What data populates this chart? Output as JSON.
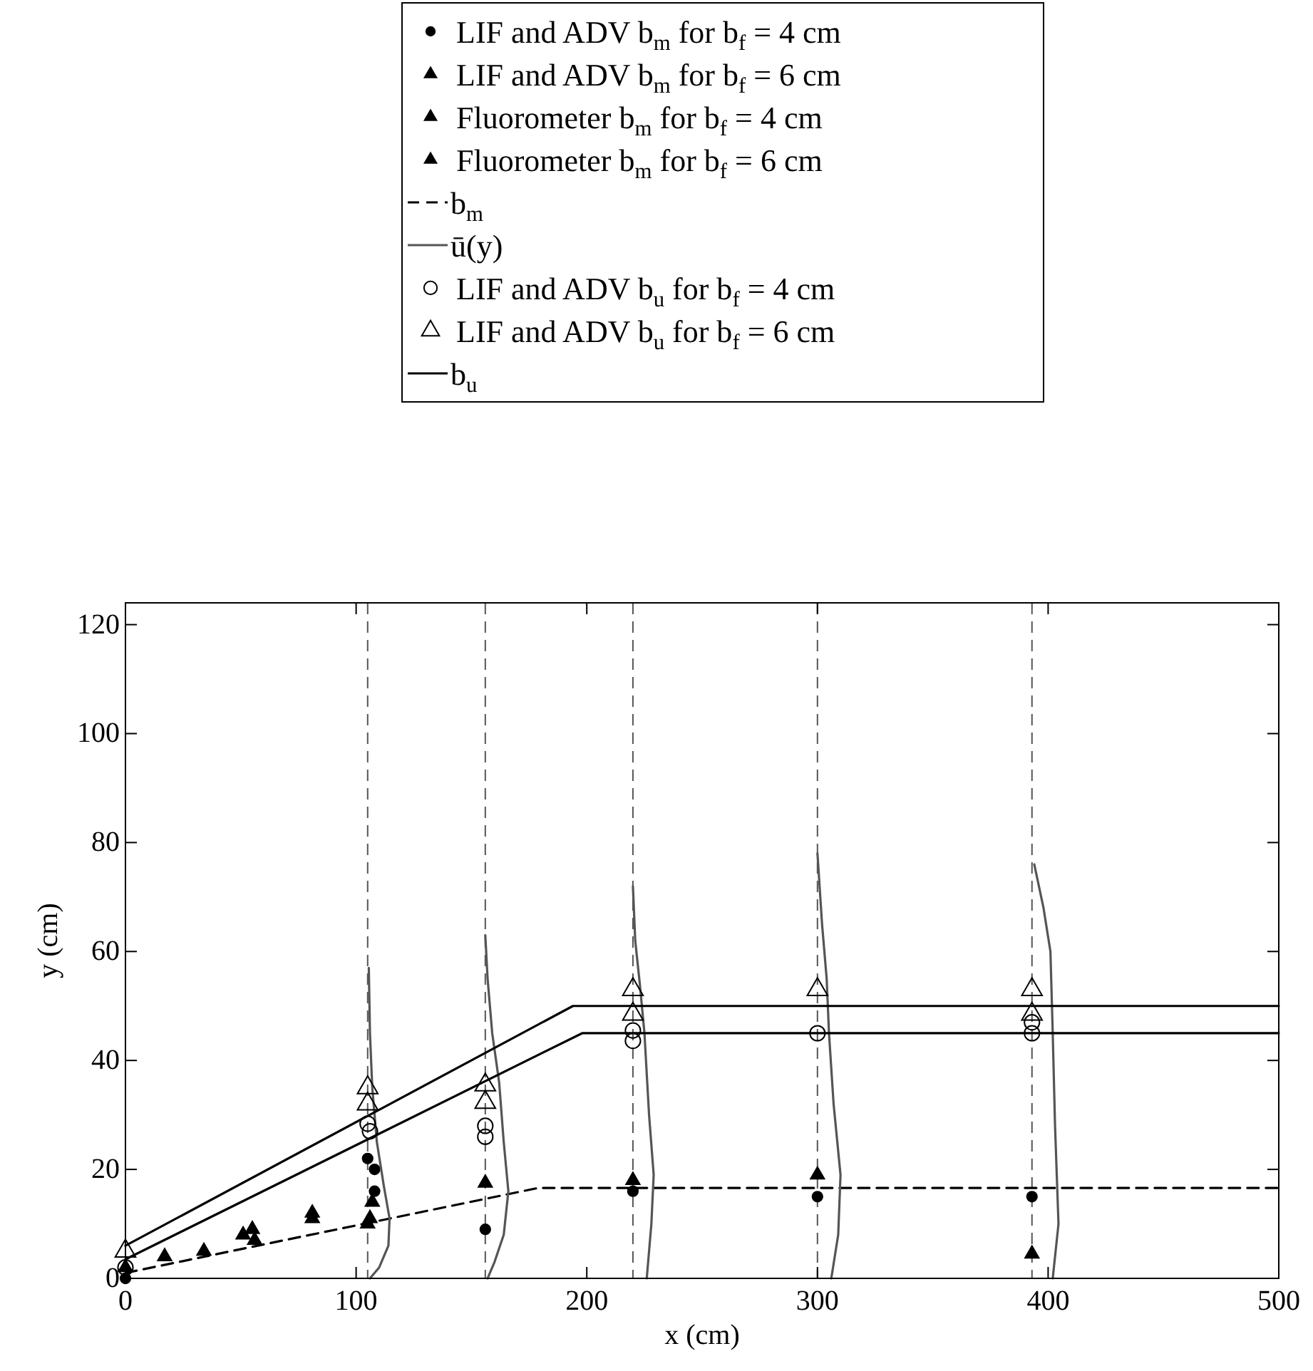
{
  "chart_data": {
    "type": "scatter",
    "xlabel": "x (cm)",
    "ylabel": "y (cm)",
    "xlim": [
      0,
      500
    ],
    "ylim": [
      0,
      124
    ],
    "xticks": [
      0,
      100,
      200,
      300,
      400,
      500
    ],
    "yticks": [
      0,
      20,
      40,
      60,
      80,
      100,
      120
    ],
    "grid": false,
    "legend": "top",
    "series": [
      {
        "name": "LIF and ADV b$_{m}$ for b$_{f}$ = 4 cm",
        "marker": "circle",
        "color": "#000000",
        "x": [
          0,
          105,
          108,
          108,
          156,
          220,
          300,
          393
        ],
        "values": [
          0,
          22,
          20,
          16,
          9,
          16,
          15,
          15
        ]
      },
      {
        "name": "LIF and ADV b$_{m}$ for b$_{f}$ = 6 cm",
        "marker": "triangle",
        "color": "#000000",
        "x": [
          0,
          105,
          106,
          107,
          156,
          220,
          300,
          393
        ],
        "values": [
          2,
          10,
          11,
          14,
          17.5,
          18,
          19,
          4.5
        ]
      },
      {
        "name": "Fluorometer b$_{m}$ for b$_{f}$ = 4 cm",
        "marker": "triangle",
        "color": "#000000",
        "x": [
          17,
          34,
          55,
          81
        ],
        "values": [
          4,
          5,
          9,
          12
        ]
      },
      {
        "name": "Fluorometer b$_{m}$ for b$_{f}$ = 6 cm",
        "marker": "triangle",
        "color": "#000000",
        "x": [
          51,
          56,
          81
        ],
        "values": [
          8,
          7,
          11
        ]
      },
      {
        "name": "b$_{m}$",
        "type": "line",
        "line_style": "dashed",
        "marker": "none",
        "color": "#000000",
        "x": [
          0,
          179,
          500
        ],
        "values": [
          1,
          16.6,
          16.6
        ]
      },
      {
        "name": "ū(y)",
        "type": "line",
        "line_style": "solid",
        "marker": "none",
        "color": "#555555",
        "x": [
          105.5,
          106,
          107,
          109,
          112,
          114.5,
          114,
          110,
          106,
          130,
          156,
          157,
          159,
          162,
          164,
          166,
          164,
          160,
          157,
          190,
          220,
          221,
          223,
          225,
          227,
          229,
          228,
          226,
          260,
          300,
          302,
          304,
          305,
          307,
          310,
          309,
          306,
          350,
          394,
          398,
          401,
          402,
          403,
          404.5,
          402
        ],
        "values": [
          57,
          45,
          35,
          25,
          17,
          11,
          6,
          2,
          0,
          null,
          63,
          55,
          45,
          36,
          25,
          16,
          8,
          3,
          0,
          null,
          72,
          62,
          54,
          45,
          30,
          19,
          10,
          0,
          null,
          78,
          65,
          55,
          45,
          32,
          19,
          8,
          0,
          null,
          76,
          68,
          60,
          45,
          28,
          10,
          0
        ]
      },
      {
        "name": "LIF and ADV b$_{u}$ for b$_{f}$ = 4 cm",
        "marker": "circle-open",
        "color": "#000000",
        "x": [
          0,
          105,
          106,
          156,
          156,
          220,
          220,
          300,
          393,
          393
        ],
        "values": [
          2,
          28.4,
          27,
          28,
          26,
          43.6,
          45.5,
          45,
          45,
          47
        ]
      },
      {
        "name": "LIF and ADV b$_{u}$ for b$_{f}$ = 6 cm",
        "marker": "triangle-open",
        "color": "#000000",
        "x": [
          0,
          105,
          105,
          156,
          156,
          220,
          220,
          300,
          393,
          393
        ],
        "values": [
          5,
          35,
          32,
          35.5,
          32.3,
          53,
          48.5,
          53,
          53,
          48.5
        ]
      },
      {
        "name": "b$_{u}$",
        "type": "line",
        "line_style": "solid",
        "marker": "none",
        "color": "#000000",
        "x": [
          0,
          194,
          500,
          250,
          0,
          198,
          500
        ],
        "values": [
          6,
          50,
          50,
          null,
          3.5,
          45,
          45
        ]
      }
    ],
    "ref_lines": [
      {
        "axis": "x",
        "value": 105,
        "color": "#555555",
        "line_style": "dashed"
      },
      {
        "axis": "x",
        "value": 156,
        "color": "#555555",
        "line_style": "dashed"
      },
      {
        "axis": "x",
        "value": 220,
        "color": "#555555",
        "line_style": "dashed"
      },
      {
        "axis": "x",
        "value": 300,
        "color": "#555555",
        "line_style": "dashed"
      },
      {
        "axis": "x",
        "value": 393,
        "color": "#555555",
        "line_style": "dashed"
      }
    ]
  }
}
